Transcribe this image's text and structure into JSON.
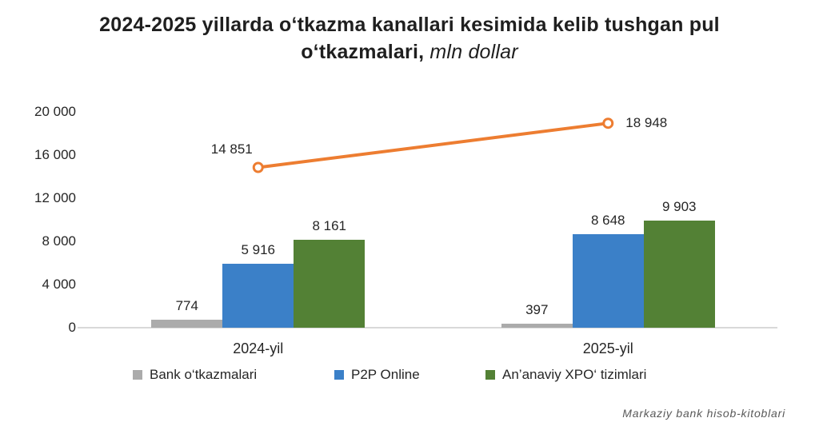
{
  "title": {
    "line1": "2024-2025 yillarda o‘tkazma kanallari kesimida kelib tushgan pul",
    "line2_bold": "o‘tkazmalari,",
    "line2_italic": " mln dollar"
  },
  "footer": {
    "source": "Markaziy bank hisob-kitoblari"
  },
  "chart_data": {
    "type": "combo-bar-line",
    "categories": [
      "2024-yil",
      "2025-yil"
    ],
    "bar_series": [
      {
        "name": "Bank o‘tkazmalari",
        "color": "#ABABAB",
        "values": [
          774,
          397
        ]
      },
      {
        "name": "P2P Online",
        "color": "#3B80C8",
        "values": [
          5916,
          8648
        ]
      },
      {
        "name": "An’anaviy XPO‘ tizimlari",
        "color": "#538135",
        "values": [
          8161,
          9903
        ]
      }
    ],
    "line_series": {
      "color": "#ED7D31",
      "marker_fill": "#FFFFFF",
      "values": [
        14851,
        18948
      ]
    },
    "ylabel": "",
    "xlabel": "",
    "ylim": [
      0,
      20000
    ],
    "yticks": [
      0,
      4000,
      8000,
      12000,
      16000,
      20000
    ],
    "grid": false,
    "legend_position": "bottom",
    "axis_color": "#D9D9D9"
  }
}
